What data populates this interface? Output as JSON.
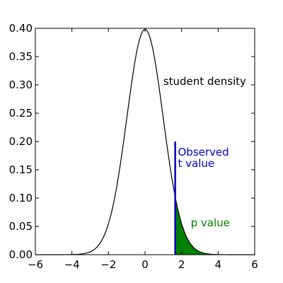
{
  "chart_data": {
    "type": "line",
    "title": "",
    "xlabel": "",
    "ylabel": "",
    "xlim": [
      -6,
      6
    ],
    "ylim": [
      0,
      0.4
    ],
    "grid": false,
    "x_ticks": [
      -6,
      -4,
      -2,
      0,
      2,
      4,
      6
    ],
    "x_tick_labels": [
      "−6",
      "−4",
      "−2",
      "0",
      "2",
      "4",
      "6"
    ],
    "y_ticks": [
      0.0,
      0.05,
      0.1,
      0.15,
      0.2,
      0.25,
      0.3,
      0.35,
      0.4
    ],
    "y_tick_labels": [
      "0.00",
      "0.05",
      "0.10",
      "0.15",
      "0.20",
      "0.25",
      "0.30",
      "0.35",
      "0.40"
    ],
    "series": [
      {
        "distribution": "student-t",
        "x_range": [
          -6,
          6
        ],
        "peak": [
          0,
          0.397
        ],
        "color": "#000000"
      }
    ],
    "observed_t": 1.65,
    "observed_line_top": 0.2,
    "observed_line_color": "#0000cc",
    "shaded_region": {
      "x_from": 1.65,
      "x_to": 6,
      "color": "#008000"
    },
    "annotations": [
      {
        "text": "student density",
        "x": 1.0,
        "y": 0.3,
        "color": "#000000"
      },
      {
        "text": "Observed",
        "x": 1.8,
        "y": 0.175,
        "color": "#0000cc"
      },
      {
        "text": " t value",
        "x": 1.8,
        "y": 0.155,
        "color": "#0000cc"
      },
      {
        "text": "p value",
        "x": 2.5,
        "y": 0.05,
        "color": "#008000"
      }
    ]
  }
}
